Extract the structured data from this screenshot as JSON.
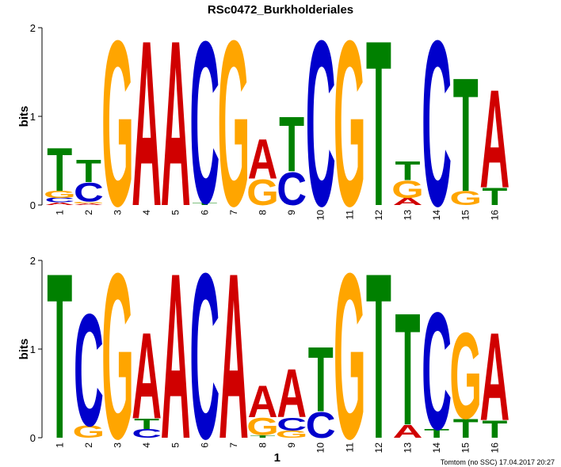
{
  "title": "RSc0472_Burkholderiales",
  "footer": "Tomtom (no SSC) 17.04.2017 20:27",
  "colors": {
    "A": "#d00000",
    "C": "#0000cc",
    "G": "#ffa500",
    "T": "#008000"
  },
  "chart_data": [
    {
      "type": "sequence-logo",
      "name": "top-logo",
      "ylabel": "bits",
      "xlabel": "",
      "ylim": [
        0,
        2
      ],
      "yticks": [
        "0",
        "1",
        "2"
      ],
      "positions": [
        "1",
        "2",
        "3",
        "4",
        "5",
        "6",
        "7",
        "8",
        "9",
        "10",
        "11",
        "12",
        "13",
        "14",
        "15",
        "16"
      ],
      "stacks": [
        [
          [
            "A",
            0.03
          ],
          [
            "C",
            0.05
          ],
          [
            "G",
            0.08
          ],
          [
            "T",
            0.5
          ]
        ],
        [
          [
            "A",
            0.02
          ],
          [
            "G",
            0.02
          ],
          [
            "C",
            0.22
          ],
          [
            "T",
            0.26
          ]
        ],
        [
          [
            "G",
            1.92
          ]
        ],
        [
          [
            "A",
            1.92
          ]
        ],
        [
          [
            "A",
            1.92
          ]
        ],
        [
          [
            "T",
            0.03
          ],
          [
            "C",
            1.88
          ]
        ],
        [
          [
            "G",
            1.92
          ]
        ],
        [
          [
            "G",
            0.3
          ],
          [
            "A",
            0.46
          ]
        ],
        [
          [
            "C",
            0.38
          ],
          [
            "T",
            0.64
          ]
        ],
        [
          [
            "C",
            1.92
          ]
        ],
        [
          [
            "G",
            1.92
          ]
        ],
        [
          [
            "T",
            1.92
          ]
        ],
        [
          [
            "A",
            0.08
          ],
          [
            "G",
            0.2
          ],
          [
            "T",
            0.22
          ]
        ],
        [
          [
            "C",
            1.92
          ]
        ],
        [
          [
            "G",
            0.16
          ],
          [
            "T",
            1.32
          ]
        ],
        [
          [
            "T",
            0.2
          ],
          [
            "A",
            1.14
          ]
        ]
      ]
    },
    {
      "type": "sequence-logo",
      "name": "bottom-logo",
      "ylabel": "bits",
      "xlabel": "1",
      "ylim": [
        0,
        2
      ],
      "yticks": [
        "0",
        "1",
        "2"
      ],
      "positions": [
        "1",
        "2",
        "3",
        "4",
        "5",
        "6",
        "7",
        "8",
        "9",
        "10",
        "11",
        "12",
        "13",
        "14",
        "15",
        "16"
      ],
      "stacks": [
        [
          [
            "T",
            1.92
          ]
        ],
        [
          [
            "G",
            0.14
          ],
          [
            "C",
            1.3
          ]
        ],
        [
          [
            "G",
            1.92
          ]
        ],
        [
          [
            "C",
            0.1
          ],
          [
            "T",
            0.12
          ],
          [
            "A",
            1.0
          ]
        ],
        [
          [
            "A",
            1.92
          ]
        ],
        [
          [
            "C",
            1.92
          ]
        ],
        [
          [
            "A",
            1.92
          ]
        ],
        [
          [
            "T",
            0.03
          ],
          [
            "G",
            0.2
          ],
          [
            "A",
            0.37
          ]
        ],
        [
          [
            "G",
            0.08
          ],
          [
            "C",
            0.15
          ],
          [
            "A",
            0.56
          ]
        ],
        [
          [
            "C",
            0.3
          ],
          [
            "T",
            0.75
          ]
        ],
        [
          [
            "G",
            1.92
          ]
        ],
        [
          [
            "T",
            1.92
          ]
        ],
        [
          [
            "A",
            0.15
          ],
          [
            "T",
            1.3
          ]
        ],
        [
          [
            "T",
            0.1
          ],
          [
            "C",
            1.36
          ]
        ],
        [
          [
            "T",
            0.22
          ],
          [
            "G",
            1.0
          ]
        ],
        [
          [
            "T",
            0.2
          ],
          [
            "A",
            1.02
          ]
        ]
      ]
    }
  ]
}
